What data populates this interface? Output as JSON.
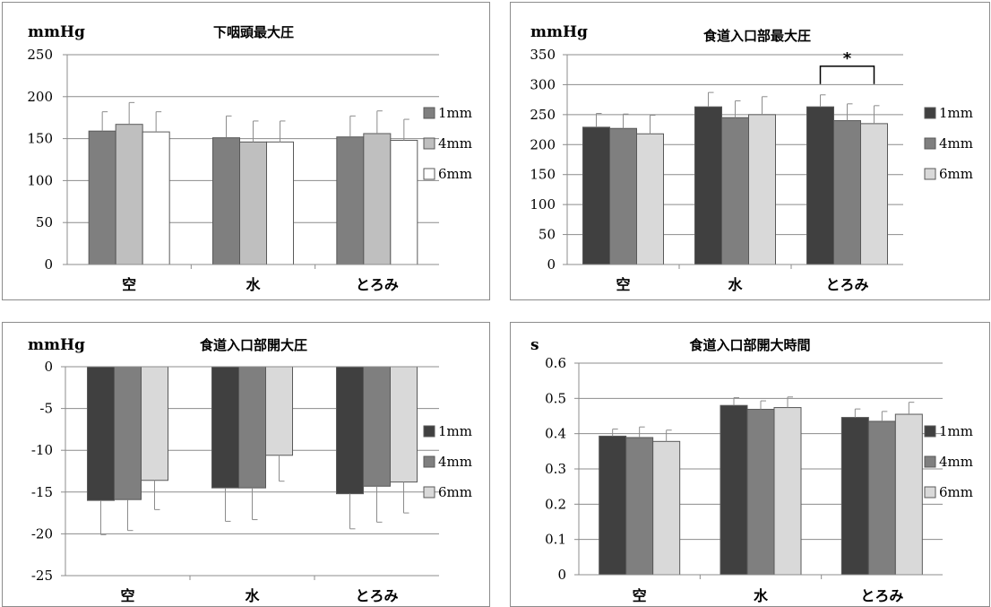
{
  "chart_data": [
    {
      "type": "bar",
      "unit_label": "mmHg",
      "title": "下咽頭最大圧",
      "categories": [
        "空",
        "水",
        "とろみ"
      ],
      "ylim": [
        0,
        250
      ],
      "yticks": [
        0,
        50,
        100,
        150,
        200,
        250
      ],
      "series": [
        {
          "name": "1mm",
          "values": [
            159,
            151,
            152
          ],
          "errors": [
            23,
            26,
            25
          ],
          "color": "#7f7f7f"
        },
        {
          "name": "4mm",
          "values": [
            167,
            146,
            156
          ],
          "errors": [
            26,
            25,
            27
          ],
          "color": "#bfbfbf"
        },
        {
          "name": "6mm",
          "values": [
            158,
            146,
            148
          ],
          "errors": [
            24,
            25,
            25
          ],
          "color": "#ffffff"
        }
      ],
      "grid": true,
      "legend": "right"
    },
    {
      "type": "bar",
      "unit_label": "mmHg",
      "title": "食道入口部最大圧",
      "categories": [
        "空",
        "水",
        "とろみ"
      ],
      "ylim": [
        0,
        350
      ],
      "yticks": [
        0,
        50,
        100,
        150,
        200,
        250,
        300,
        350
      ],
      "series": [
        {
          "name": "1mm",
          "values": [
            229,
            263,
            263
          ],
          "errors": [
            23,
            24,
            20
          ],
          "color": "#404040"
        },
        {
          "name": "4mm",
          "values": [
            227,
            245,
            240
          ],
          "errors": [
            24,
            28,
            28
          ],
          "color": "#7f7f7f"
        },
        {
          "name": "6mm",
          "values": [
            218,
            250,
            235
          ],
          "errors": [
            31,
            30,
            30
          ],
          "color": "#d9d9d9"
        }
      ],
      "annotation": "*",
      "grid": true,
      "legend": "right"
    },
    {
      "type": "bar",
      "unit_label": "mmHg",
      "title": "食道入口部開大圧",
      "categories": [
        "空",
        "水",
        "とろみ"
      ],
      "ylim": [
        -25,
        0
      ],
      "yticks": [
        0,
        -5,
        -10,
        -15,
        -20,
        -25
      ],
      "series": [
        {
          "name": "1mm",
          "values": [
            -16.0,
            -14.5,
            -15.2
          ],
          "errors": [
            4.1,
            4.0,
            4.2
          ],
          "color": "#404040"
        },
        {
          "name": "4mm",
          "values": [
            -15.9,
            -14.5,
            -14.3
          ],
          "errors": [
            3.7,
            3.8,
            4.3
          ],
          "color": "#7f7f7f"
        },
        {
          "name": "6mm",
          "values": [
            -13.6,
            -10.6,
            -13.8
          ],
          "errors": [
            3.5,
            3.1,
            3.7
          ],
          "color": "#d9d9d9"
        }
      ],
      "grid": true,
      "legend": "right"
    },
    {
      "type": "bar",
      "unit_label": "s",
      "title": "食道入口部開大時間",
      "categories": [
        "空",
        "水",
        "とろみ"
      ],
      "ylim": [
        0,
        0.6
      ],
      "yticks": [
        "0",
        "0.1",
        "0.2",
        "0.3",
        "0.4",
        "0.5",
        "0.6"
      ],
      "series": [
        {
          "name": "1mm",
          "values": [
            0.393,
            0.48,
            0.446
          ],
          "errors": [
            0.02,
            0.022,
            0.024
          ],
          "color": "#404040"
        },
        {
          "name": "4mm",
          "values": [
            0.389,
            0.469,
            0.435
          ],
          "errors": [
            0.03,
            0.024,
            0.028
          ],
          "color": "#7f7f7f"
        },
        {
          "name": "6mm",
          "values": [
            0.378,
            0.474,
            0.455
          ],
          "errors": [
            0.032,
            0.03,
            0.034
          ],
          "color": "#d9d9d9"
        }
      ],
      "grid": true,
      "legend": "right"
    }
  ]
}
